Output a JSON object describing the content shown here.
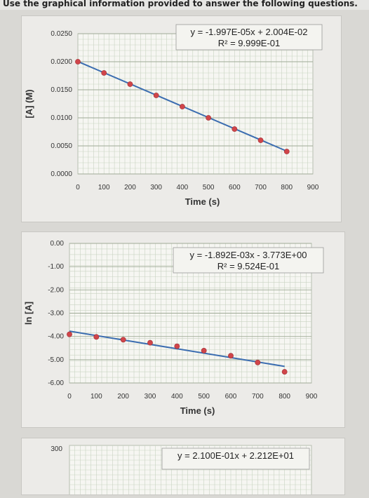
{
  "header": {
    "instruction": "Use the graphical information provided to answer the following questions."
  },
  "colors": {
    "point": "#d0454a",
    "line": "#3b6db0",
    "grid": "#c9d3c2"
  },
  "chart_data": [
    {
      "type": "scatter",
      "xlabel": "Time (s)",
      "ylabel": "[A] (M)",
      "xlim": [
        0,
        900
      ],
      "ylim": [
        0,
        0.025
      ],
      "x_ticks": [
        "0",
        "100",
        "200",
        "300",
        "400",
        "500",
        "600",
        "700",
        "800",
        "900"
      ],
      "y_ticks": [
        "0.0000",
        "0.0050",
        "0.0100",
        "0.0150",
        "0.0200",
        "0.0250"
      ],
      "trendline_eq": "y = -1.997E-05x + 2.004E-02",
      "r_squared": "R² = 9.999E-01",
      "points": [
        {
          "x": 0,
          "y": 0.02
        },
        {
          "x": 100,
          "y": 0.018
        },
        {
          "x": 200,
          "y": 0.016
        },
        {
          "x": 300,
          "y": 0.014
        },
        {
          "x": 400,
          "y": 0.012
        },
        {
          "x": 500,
          "y": 0.01
        },
        {
          "x": 600,
          "y": 0.008
        },
        {
          "x": 700,
          "y": 0.006
        },
        {
          "x": 800,
          "y": 0.004
        }
      ],
      "trend": {
        "slope": -1.997e-05,
        "intercept": 0.02004
      }
    },
    {
      "type": "scatter",
      "xlabel": "Time (s)",
      "ylabel": "ln [A]",
      "xlim": [
        0,
        900
      ],
      "ylim": [
        -6,
        0
      ],
      "x_ticks": [
        "0",
        "100",
        "200",
        "300",
        "400",
        "500",
        "600",
        "700",
        "800",
        "900"
      ],
      "y_ticks": [
        "-6.00",
        "-5.00",
        "-4.00",
        "-3.00",
        "-2.00",
        "-1.00",
        "0.00"
      ],
      "trendline_eq": "y = -1.892E-03x - 3.773E+00",
      "r_squared": "R² = 9.524E-01",
      "points": [
        {
          "x": 0,
          "y": -3.91
        },
        {
          "x": 100,
          "y": -4.02
        },
        {
          "x": 200,
          "y": -4.14
        },
        {
          "x": 300,
          "y": -4.27
        },
        {
          "x": 400,
          "y": -4.42
        },
        {
          "x": 500,
          "y": -4.61
        },
        {
          "x": 600,
          "y": -4.83
        },
        {
          "x": 700,
          "y": -5.12
        },
        {
          "x": 800,
          "y": -5.52
        }
      ],
      "trend": {
        "slope": -0.001892,
        "intercept": -3.773
      }
    },
    {
      "type": "scatter",
      "y_ticks": [
        "300"
      ],
      "trendline_eq": "y = 2.100E-01x + 2.212E+01"
    }
  ]
}
